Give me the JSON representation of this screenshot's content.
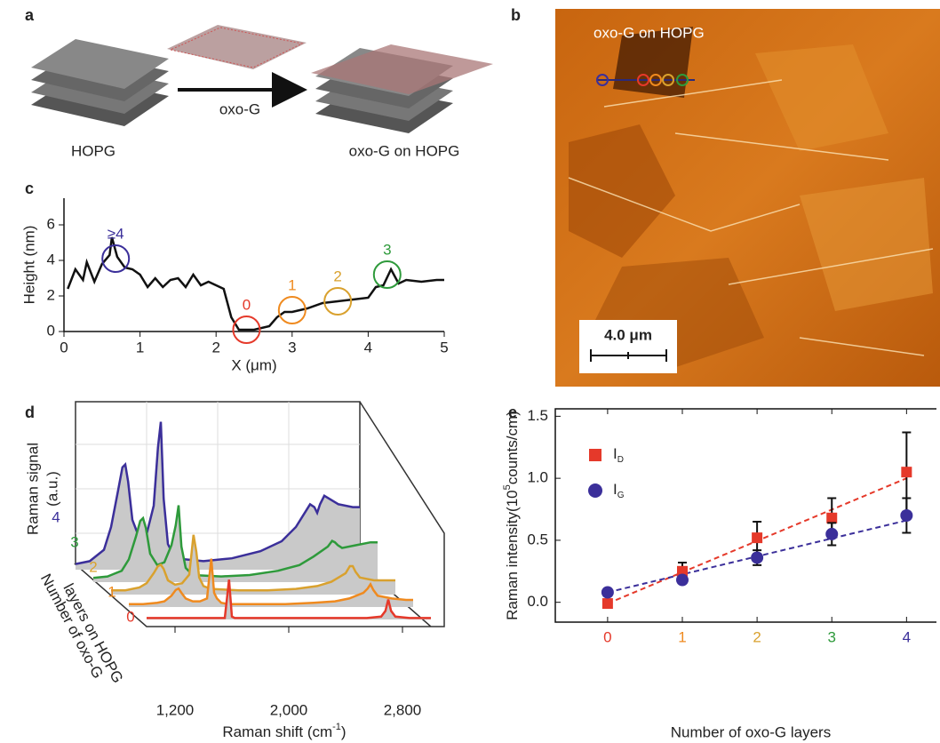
{
  "panels": {
    "a": {
      "label": "a",
      "left": "HOPG",
      "arrow": "oxo-G",
      "right": "oxo-G on HOPG"
    },
    "b": {
      "label": "b",
      "caption": "oxo-G on HOPG",
      "scale_bar": "4.0 μm"
    }
  },
  "chart_data": [
    {
      "panel": "c",
      "type": "line",
      "color": "#111111",
      "x": [
        0.05,
        0.15,
        0.25,
        0.3,
        0.4,
        0.5,
        0.6,
        0.63,
        0.7,
        0.8,
        0.9,
        1.0,
        1.1,
        1.2,
        1.3,
        1.4,
        1.5,
        1.6,
        1.7,
        1.8,
        1.9,
        2.0,
        2.1,
        2.2,
        2.3,
        2.5,
        2.7,
        2.8,
        2.9,
        3.0,
        3.2,
        3.4,
        3.6,
        3.8,
        4.0,
        4.1,
        4.2,
        4.3,
        4.4,
        4.5,
        4.7,
        4.9,
        5.0
      ],
      "values": [
        2.4,
        3.5,
        2.9,
        3.9,
        2.8,
        3.8,
        4.3,
        5.3,
        4.2,
        3.6,
        3.5,
        3.2,
        2.5,
        3.0,
        2.5,
        2.9,
        3.0,
        2.5,
        3.2,
        2.6,
        2.8,
        2.6,
        2.4,
        0.8,
        0.1,
        0.1,
        0.3,
        0.8,
        1.1,
        1.1,
        1.3,
        1.6,
        1.7,
        1.8,
        1.9,
        2.5,
        2.6,
        3.5,
        2.7,
        2.9,
        2.8,
        2.9,
        2.9
      ],
      "xlim": [
        0,
        5
      ],
      "xticks": [
        0,
        1,
        2,
        3,
        4,
        5
      ],
      "ylim": [
        0,
        7.5
      ],
      "yticks": [
        0,
        2,
        4,
        6
      ],
      "x_label": "X (μm)",
      "y_label": "Height (nm)",
      "annotations": [
        {
          "text": "≥4",
          "x": 0.68,
          "y": 4.1,
          "color": "#3b2f9a"
        },
        {
          "text": "0",
          "x": 2.4,
          "y": 0.1,
          "color": "#e5392a"
        },
        {
          "text": "1",
          "x": 3.0,
          "y": 1.2,
          "color": "#ef8a1f"
        },
        {
          "text": "2",
          "x": 3.6,
          "y": 1.7,
          "color": "#d9a12e"
        },
        {
          "text": "3",
          "x": 4.25,
          "y": 3.2,
          "color": "#2e9a3b"
        }
      ]
    },
    {
      "panel": "d",
      "type": "waterfall",
      "fill": "#c9c9c9",
      "x": [
        1000,
        1100,
        1200,
        1250,
        1300,
        1330,
        1350,
        1370,
        1400,
        1450,
        1500,
        1550,
        1580,
        1600,
        1620,
        1650,
        1700,
        1900,
        2100,
        2300,
        2450,
        2550,
        2650,
        2680,
        2700,
        2720,
        2750,
        2850,
        2950,
        3000
      ],
      "series": [
        {
          "name": "0",
          "color": "#e5392a",
          "values": [
            0.1,
            0.1,
            0.1,
            0.1,
            0.1,
            0.1,
            0.1,
            0.1,
            0.1,
            0.1,
            0.1,
            0.1,
            2.8,
            0.2,
            0.1,
            0.1,
            0.1,
            0.1,
            0.1,
            0.1,
            0.1,
            0.1,
            0.2,
            0.6,
            1.4,
            0.6,
            0.2,
            0.1,
            0.1,
            0.1
          ]
        },
        {
          "name": "1",
          "color": "#ef8a1f",
          "values": [
            0.2,
            0.2,
            0.3,
            0.4,
            0.8,
            1.2,
            1.3,
            1.0,
            0.6,
            0.4,
            0.4,
            0.6,
            3.4,
            1.0,
            0.6,
            0.3,
            0.2,
            0.2,
            0.2,
            0.3,
            0.4,
            0.6,
            1.0,
            1.3,
            1.6,
            1.2,
            0.8,
            0.6,
            0.5,
            0.5
          ]
        },
        {
          "name": "2",
          "color": "#d9a12e",
          "values": [
            0.3,
            0.3,
            0.5,
            0.8,
            1.5,
            2.0,
            2.1,
            1.8,
            1.0,
            0.7,
            0.8,
            1.4,
            4.2,
            3.0,
            1.2,
            0.6,
            0.4,
            0.3,
            0.3,
            0.4,
            0.6,
            0.9,
            1.5,
            2.0,
            2.0,
            1.6,
            1.2,
            1.0,
            1.0,
            1.0
          ]
        },
        {
          "name": "3",
          "color": "#2e9a3b",
          "values": [
            0.3,
            0.4,
            0.8,
            1.6,
            3.2,
            4.3,
            4.5,
            3.8,
            2.0,
            1.2,
            1.4,
            2.6,
            4.0,
            5.4,
            2.5,
            1.0,
            0.5,
            0.4,
            0.5,
            0.8,
            1.2,
            1.8,
            2.5,
            2.9,
            2.8,
            2.6,
            2.4,
            2.6,
            2.8,
            2.8
          ]
        },
        {
          "name": "4",
          "color": "#3b2f9a",
          "values": [
            0.4,
            0.6,
            1.4,
            3.0,
            5.6,
            7.2,
            7.4,
            6.2,
            3.5,
            2.2,
            2.5,
            4.5,
            8.6,
            10.4,
            5.0,
            1.8,
            0.8,
            0.6,
            0.8,
            1.3,
            2.0,
            3.0,
            4.6,
            4.4,
            4.0,
            4.6,
            5.2,
            4.6,
            4.4,
            4.4
          ]
        }
      ],
      "xlim": [
        1000,
        3000
      ],
      "xticks": [
        {
          "value": 1200,
          "label": "1,200"
        },
        {
          "value": 2000,
          "label": "2,000"
        },
        {
          "value": 2800,
          "label": "2,800"
        }
      ],
      "ylim": [
        0,
        11
      ],
      "x_label": {
        "text": "Raman shift (cm",
        "sup": "-1",
        "end": ")"
      },
      "y_label": [
        "Raman signal",
        "(a.u.)"
      ],
      "z_label": [
        "Number of oxo-G",
        "layers on HOPG"
      ]
    },
    {
      "panel": "e",
      "type": "scatter",
      "x": [
        0,
        1,
        2,
        3,
        4
      ],
      "series": [
        {
          "name": "I",
          "name_sub": "D",
          "color": "#e5392a",
          "marker": "square",
          "values": [
            -0.01,
            0.25,
            0.52,
            0.68,
            1.05
          ],
          "errors": [
            0.02,
            0.07,
            0.13,
            0.16,
            0.32
          ],
          "fit": [
            -0.01,
            1.0
          ]
        },
        {
          "name": "I",
          "name_sub": "G",
          "color": "#3b2f9a",
          "marker": "circle",
          "values": [
            0.08,
            0.18,
            0.36,
            0.55,
            0.7
          ],
          "errors": [
            0.02,
            0.02,
            0.06,
            0.09,
            0.14
          ],
          "fit": [
            0.08,
            0.66
          ]
        }
      ],
      "xlim": [
        -0.7,
        4.4
      ],
      "xticks": [
        0,
        1,
        2,
        3,
        4
      ],
      "xtick_colors": [
        "#e5392a",
        "#ef8a1f",
        "#d9a12e",
        "#2e9a3b",
        "#3b2f9a"
      ],
      "ylim": [
        -0.16,
        1.56
      ],
      "yticks": [
        {
          "value": 0,
          "label": "0.0"
        },
        0.5,
        {
          "value": 1,
          "label": "1.0"
        },
        1.5
      ],
      "x_label": "Number of oxo-G layers",
      "y_label": {
        "text": "Raman intensity(10",
        "sup": "5",
        "end": "counts/cm)"
      }
    }
  ]
}
